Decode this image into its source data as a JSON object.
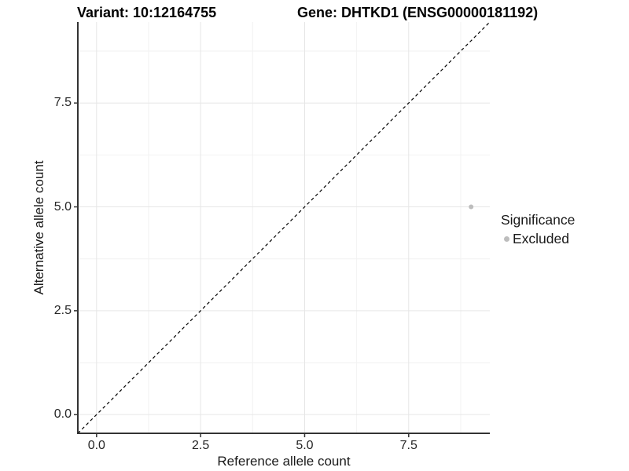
{
  "titles": {
    "variant": "Variant: 10:12164755",
    "gene": "Gene: DHTKD1 (ENSG00000181192)"
  },
  "chart_data": {
    "type": "scatter",
    "xlabel": "Reference allele count",
    "ylabel": "Alternative allele count",
    "xlim": [
      -0.45,
      9.45
    ],
    "ylim": [
      -0.45,
      9.45
    ],
    "x_ticks": [
      {
        "value": 0.0,
        "label": "0.0"
      },
      {
        "value": 2.5,
        "label": "2.5"
      },
      {
        "value": 5.0,
        "label": "5.0"
      },
      {
        "value": 7.5,
        "label": "7.5"
      }
    ],
    "y_ticks": [
      {
        "value": 0.0,
        "label": "0.0"
      },
      {
        "value": 2.5,
        "label": "2.5"
      },
      {
        "value": 5.0,
        "label": "5.0"
      },
      {
        "value": 7.5,
        "label": "7.5"
      }
    ],
    "minor_ticks": [
      1.25,
      3.75,
      6.25,
      8.75
    ],
    "grid": true,
    "points": [
      {
        "x": 9,
        "y": 5,
        "series": "Excluded"
      }
    ],
    "reference_line": {
      "kind": "identity",
      "x1": -0.45,
      "y1": -0.45,
      "x2": 9.45,
      "y2": 9.45,
      "style": "dashed"
    },
    "legend": {
      "title": "Significance",
      "position": "right",
      "items": [
        {
          "label": "Excluded",
          "color": "#bdbdbd"
        }
      ]
    },
    "colors": {
      "point": "#bdbdbd",
      "reference_line": "#000000",
      "grid_major": "#e6e6e6",
      "grid_minor": "#f2f2f2",
      "axis_line": "#333333",
      "tick_mark": "#333333",
      "tick_text": "#262626",
      "axis_title": "#1a1a1a",
      "plot_title": "#000000"
    }
  }
}
